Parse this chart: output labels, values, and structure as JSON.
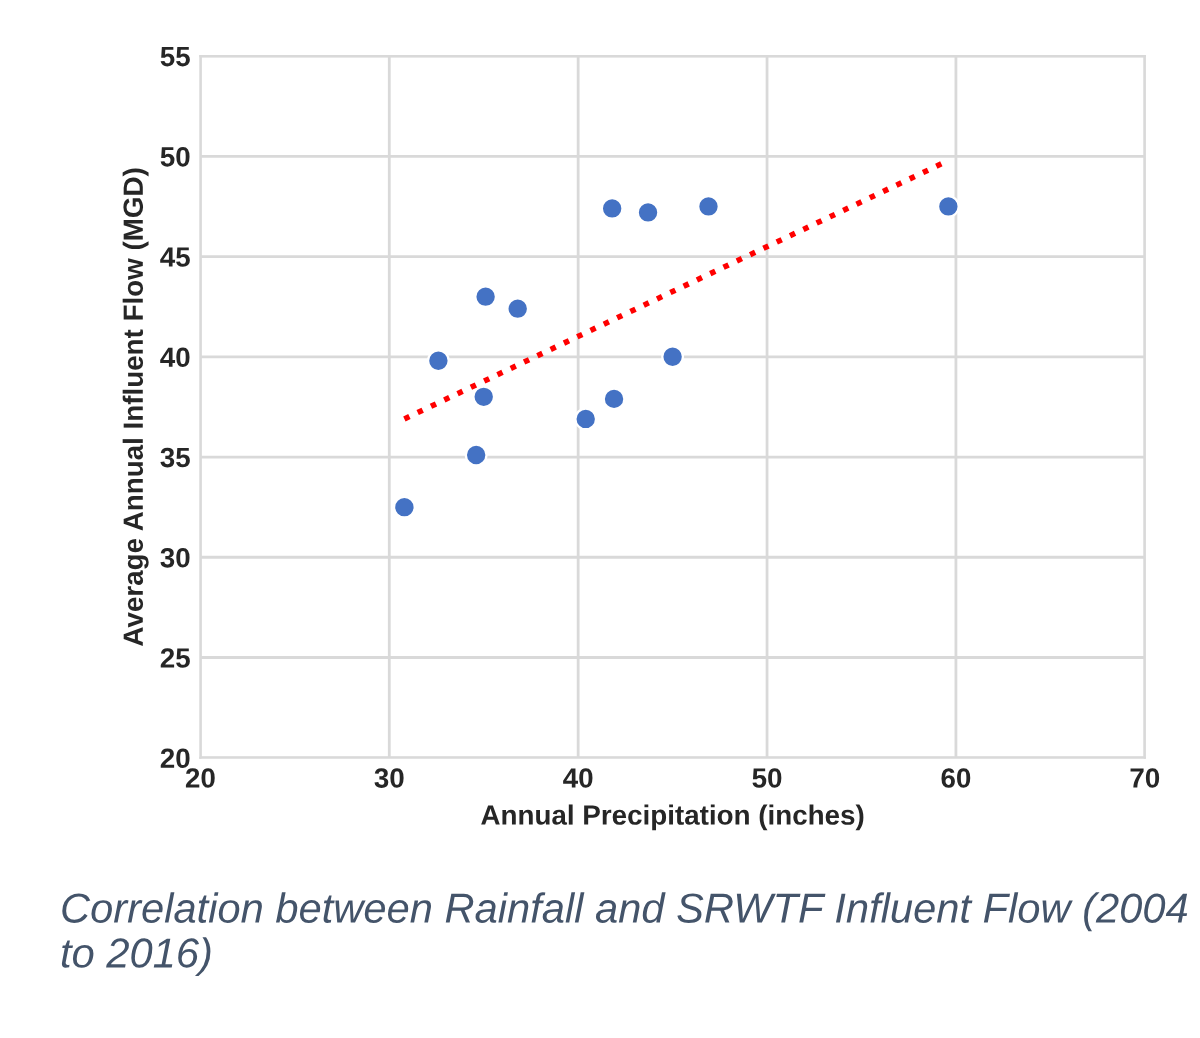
{
  "chart_data": {
    "type": "scatter",
    "xlabel": "Annual Precipitation (inches)",
    "ylabel": "Average Annual Influent Flow (MGD)",
    "series": [
      {
        "color": "#4472c4",
        "marker": "circle",
        "x": [
          30.8,
          32.6,
          35.1,
          36.8,
          35.0,
          34.6,
          40.4,
          41.9,
          45.0,
          41.8,
          43.7,
          46.9,
          59.6
        ],
        "values": [
          32.5,
          39.8,
          43.0,
          42.4,
          38.0,
          35.1,
          36.9,
          37.9,
          40.0,
          47.4,
          47.2,
          47.5,
          47.5
        ]
      },
      {
        "type": "line",
        "color": "#ff0000",
        "line_style": "dotted",
        "marker": "none",
        "x": [
          30.8,
          59.4
        ],
        "values": [
          36.9,
          49.7
        ]
      }
    ],
    "xlim": [
      20,
      70
    ],
    "xticks": [
      20,
      30,
      40,
      50,
      60,
      70
    ],
    "ylim": [
      20,
      55
    ],
    "yticks": [
      20,
      25,
      30,
      35,
      40,
      45,
      50,
      55
    ],
    "grid": true,
    "annotations": [
      "Correlation between Rainfall and SRWTF Influent Flow (2004 to 2016)"
    ]
  }
}
